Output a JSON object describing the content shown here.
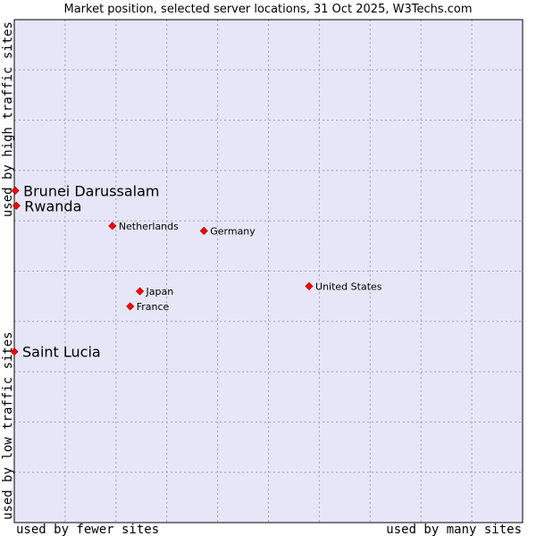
{
  "chart_data": {
    "type": "scatter",
    "title": "Market position, selected server locations, 31 Oct 2025, W3Techs.com",
    "xlabel_left": "used by fewer sites",
    "xlabel_right": "used by many sites",
    "ylabel_top": "used by high traffic sites",
    "ylabel_bottom": "used by low traffic sites",
    "xlim": [
      0,
      10
    ],
    "ylim": [
      0,
      10
    ],
    "grid": true,
    "colors": {
      "plot_bg": "#e6e6f8",
      "grid": "#a0a0b8",
      "point": "#ff0000",
      "point_edge": "#aa0000",
      "border": "#000000"
    },
    "points": [
      {
        "label": "Brunei Darussalam",
        "x": 0.02,
        "y": 6.6,
        "emphasis": true
      },
      {
        "label": "Rwanda",
        "x": 0.04,
        "y": 6.3,
        "emphasis": true
      },
      {
        "label": "Saint Lucia",
        "x": 0.0,
        "y": 3.4,
        "emphasis": true
      },
      {
        "label": "Netherlands",
        "x": 1.93,
        "y": 5.9,
        "emphasis": false
      },
      {
        "label": "Germany",
        "x": 3.73,
        "y": 5.8,
        "emphasis": false
      },
      {
        "label": "United States",
        "x": 5.8,
        "y": 4.7,
        "emphasis": false
      },
      {
        "label": "Japan",
        "x": 2.47,
        "y": 4.6,
        "emphasis": false
      },
      {
        "label": "France",
        "x": 2.28,
        "y": 4.3,
        "emphasis": false
      }
    ]
  }
}
